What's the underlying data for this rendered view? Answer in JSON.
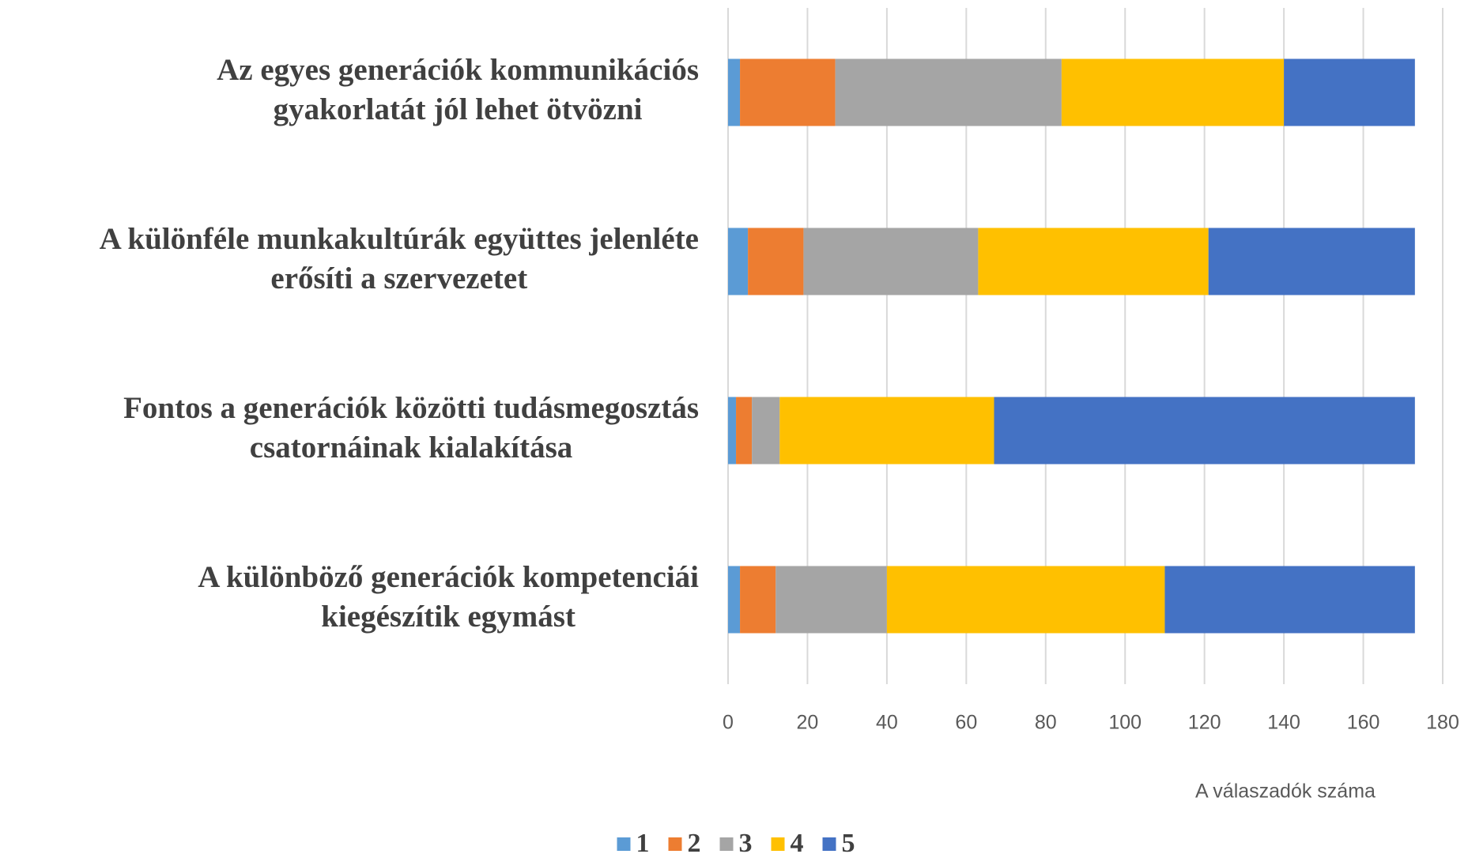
{
  "chart_data": {
    "type": "stacked_barh",
    "categories": [
      [
        "Az egyes generációk kommunikációs",
        "gyakorlatát jól lehet ötvözni"
      ],
      [
        "A különféle munkakultúrák együttes jelenléte",
        "erősíti a szervezetet"
      ],
      [
        "Fontos a generációk közötti tudásmegosztás",
        "csatornáinak kialakítása"
      ],
      [
        "A különböző generációk kompetenciái",
        "kiegészítik egymást"
      ]
    ],
    "series": [
      {
        "name": "1",
        "color": "#5b9bd5",
        "values": [
          3,
          5,
          2,
          3
        ]
      },
      {
        "name": "2",
        "color": "#ed7d31",
        "values": [
          24,
          14,
          4,
          9
        ]
      },
      {
        "name": "3",
        "color": "#a5a5a5",
        "values": [
          57,
          44,
          7,
          28
        ]
      },
      {
        "name": "4",
        "color": "#ffc000",
        "values": [
          56,
          58,
          54,
          70
        ]
      },
      {
        "name": "5",
        "color": "#4472c4",
        "values": [
          33,
          52,
          106,
          63
        ]
      }
    ],
    "xlabel": "A válaszadók száma",
    "xlim": [
      0,
      180
    ],
    "xticks": [
      0,
      20,
      40,
      60,
      80,
      100,
      120,
      140,
      160,
      180
    ],
    "grid": true,
    "legend": "bottom"
  }
}
